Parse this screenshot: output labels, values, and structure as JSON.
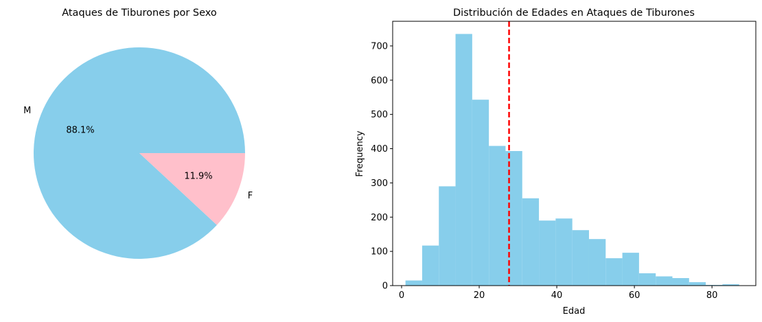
{
  "chart_data": [
    {
      "type": "pie",
      "title": "Ataques de Tiburones por Sexo",
      "labels": [
        "M",
        "F"
      ],
      "values": [
        88.1,
        11.9
      ],
      "autopct": [
        "88.1%",
        "11.9%"
      ],
      "colors": [
        "#87ceeb",
        "#ffc0cb"
      ]
    },
    {
      "type": "bar",
      "subtype": "histogram",
      "title": "Distribución de Edades en Ataques de Tiburones",
      "xlabel": "Edad",
      "ylabel": "Frequency",
      "bar_color": "#87ceeb",
      "bins": [
        {
          "x0": 1.0,
          "x1": 5.3,
          "count": 15
        },
        {
          "x0": 5.3,
          "x1": 9.6,
          "count": 117
        },
        {
          "x0": 9.6,
          "x1": 13.9,
          "count": 290
        },
        {
          "x0": 13.9,
          "x1": 18.2,
          "count": 735
        },
        {
          "x0": 18.2,
          "x1": 22.5,
          "count": 543
        },
        {
          "x0": 22.5,
          "x1": 26.8,
          "count": 408
        },
        {
          "x0": 26.8,
          "x1": 31.1,
          "count": 393
        },
        {
          "x0": 31.1,
          "x1": 35.4,
          "count": 255
        },
        {
          "x0": 35.4,
          "x1": 39.7,
          "count": 190
        },
        {
          "x0": 39.7,
          "x1": 44.0,
          "count": 196
        },
        {
          "x0": 44.0,
          "x1": 48.3,
          "count": 162
        },
        {
          "x0": 48.3,
          "x1": 52.6,
          "count": 136
        },
        {
          "x0": 52.6,
          "x1": 56.9,
          "count": 80
        },
        {
          "x0": 56.9,
          "x1": 61.2,
          "count": 96
        },
        {
          "x0": 61.2,
          "x1": 65.5,
          "count": 36
        },
        {
          "x0": 65.5,
          "x1": 69.8,
          "count": 27
        },
        {
          "x0": 69.8,
          "x1": 74.1,
          "count": 22
        },
        {
          "x0": 74.1,
          "x1": 78.4,
          "count": 10
        },
        {
          "x0": 78.4,
          "x1": 82.7,
          "count": 2
        },
        {
          "x0": 82.7,
          "x1": 87.0,
          "count": 4
        }
      ],
      "mean_line": {
        "x": 27.7,
        "color": "#ff0000",
        "style": "dashed"
      },
      "xlim": [
        -2.3,
        91.3
      ],
      "ylim": [
        0,
        772
      ],
      "xticks": [
        0,
        20,
        40,
        60,
        80
      ],
      "yticks": [
        0,
        100,
        200,
        300,
        400,
        500,
        600,
        700
      ],
      "grid": false
    }
  ]
}
